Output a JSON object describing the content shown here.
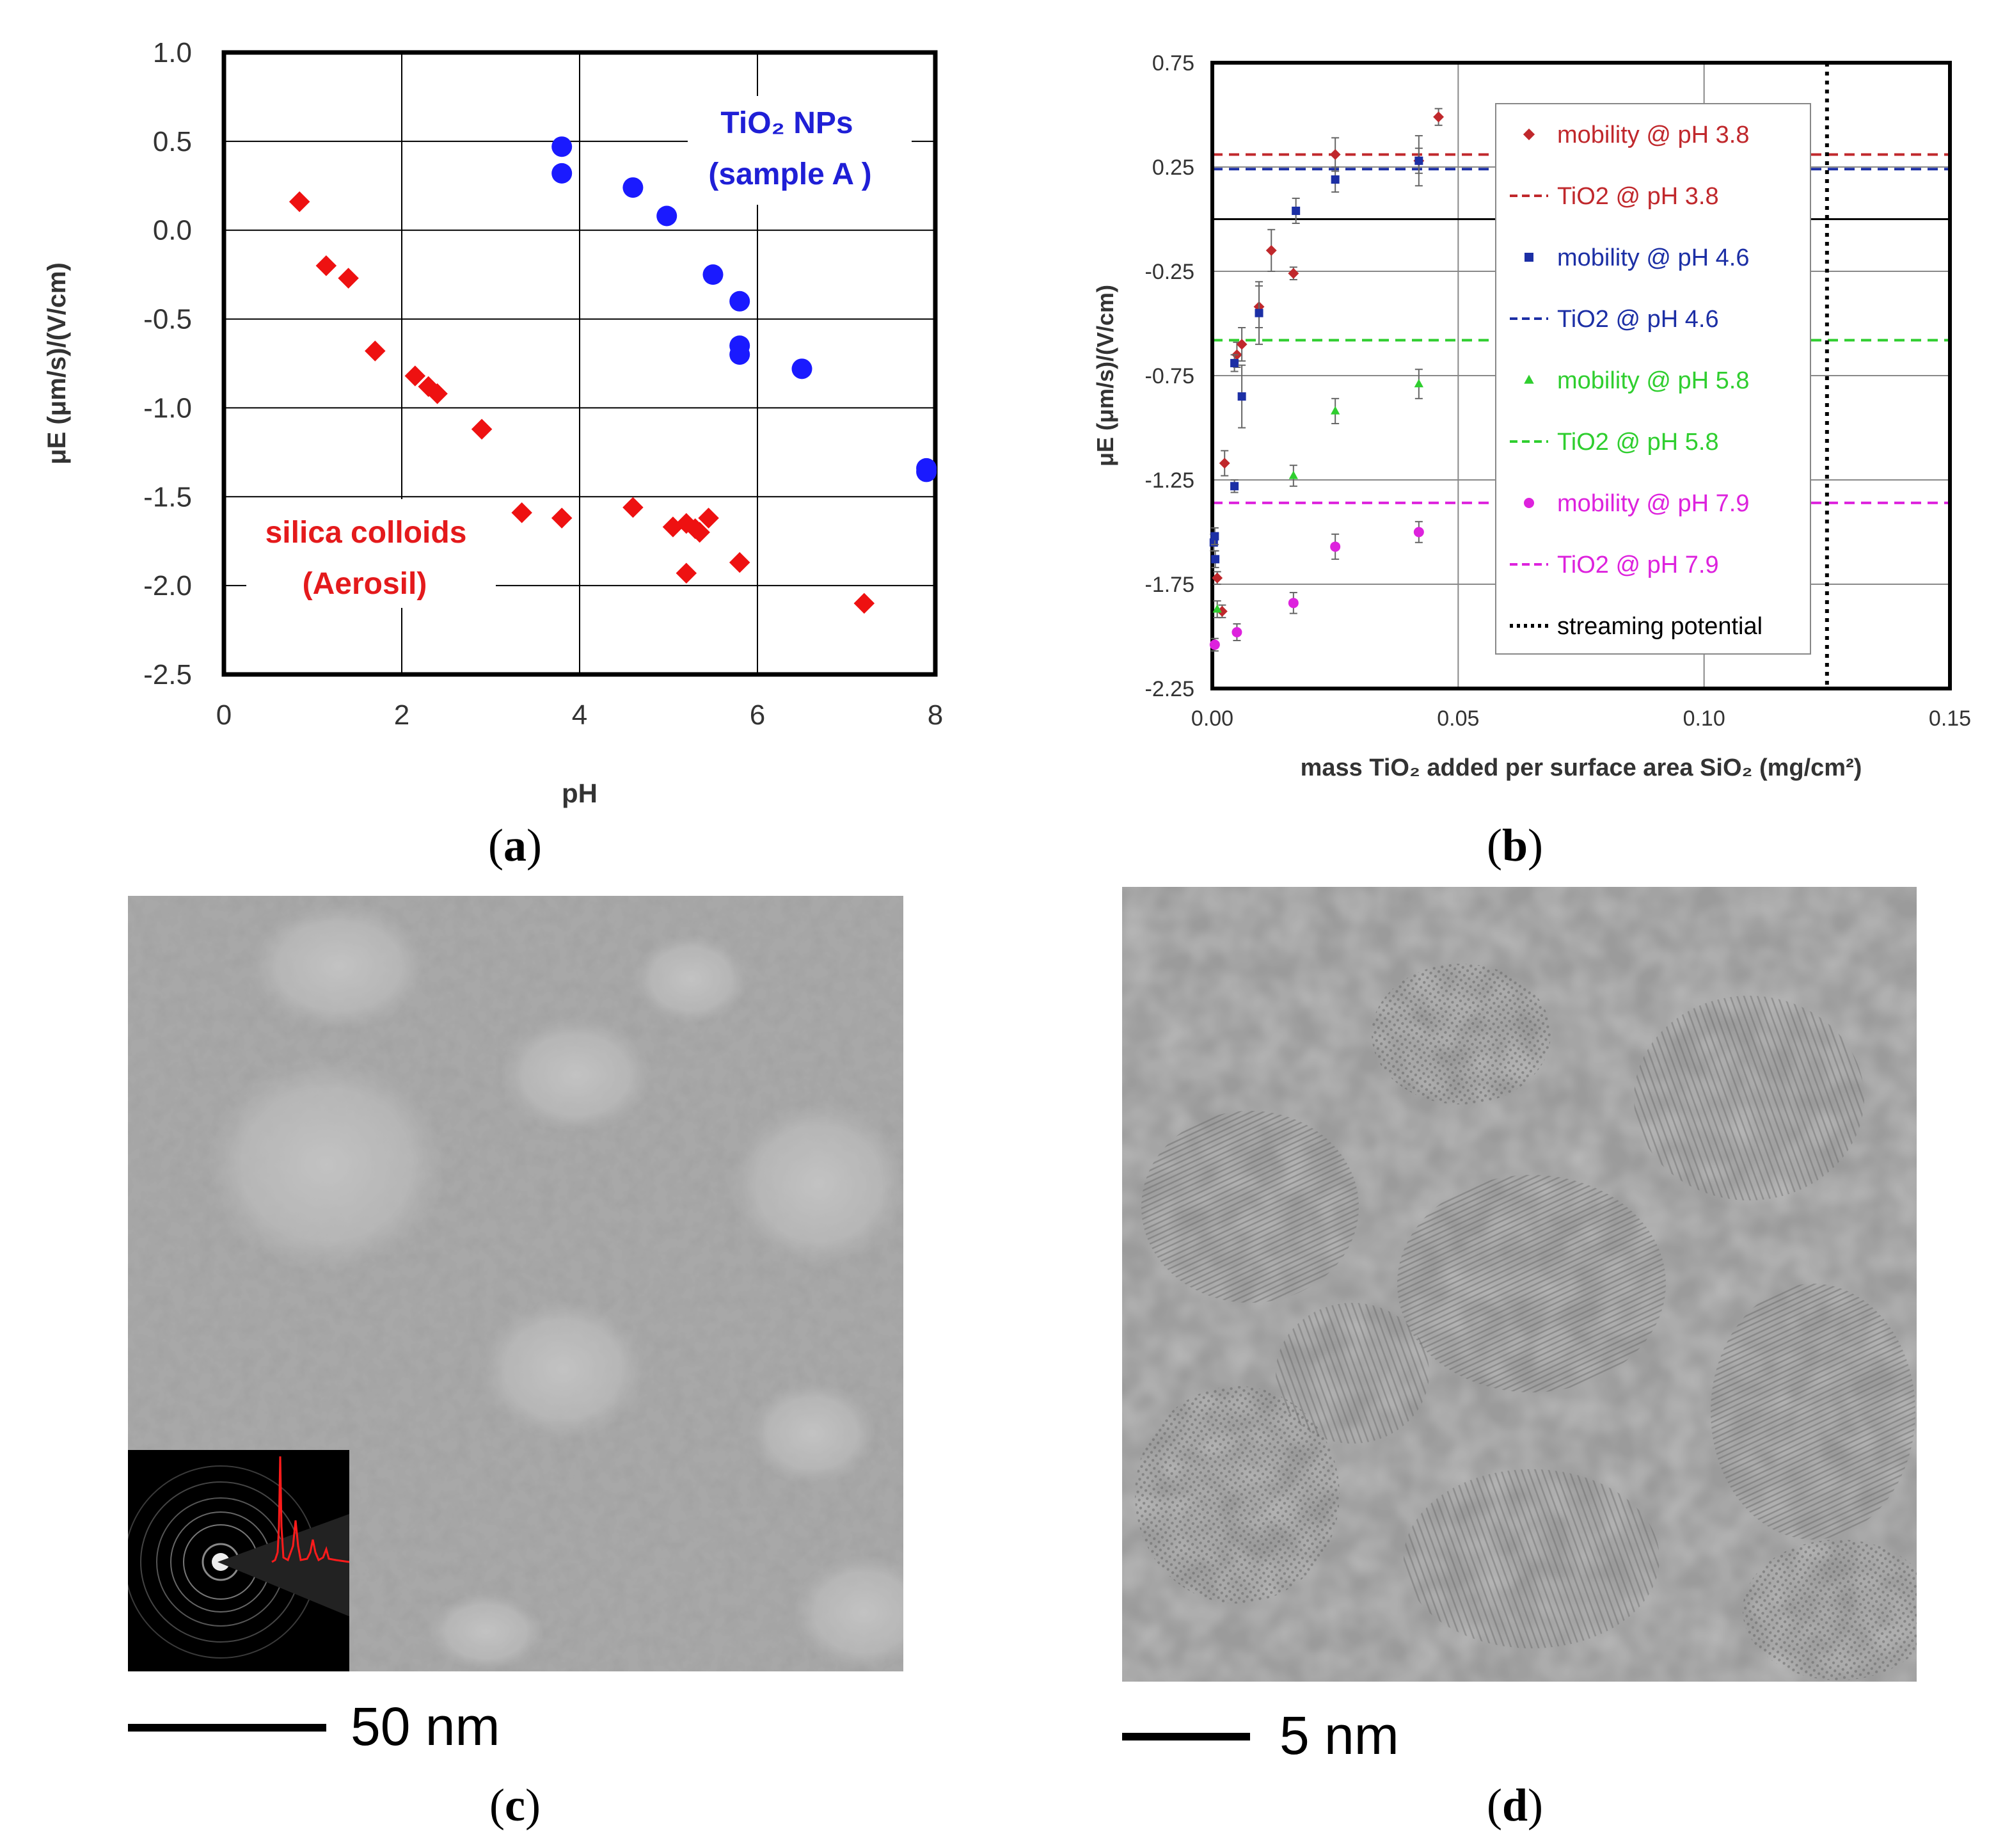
{
  "panels": {
    "a": {
      "caption": "a"
    },
    "b": {
      "caption": "b"
    },
    "c": {
      "caption": "c",
      "scale_bar": "50 nm"
    },
    "d": {
      "caption": "d",
      "scale_bar": "5 nm"
    }
  },
  "chart_data": [
    {
      "type": "scatter",
      "panel": "a",
      "xlabel": "pH",
      "ylabel": "μE (μm/s)/(V/cm)",
      "xlim": [
        0,
        8
      ],
      "ylim": [
        -2.5,
        1.0
      ],
      "xticks": [
        "0",
        "2",
        "4",
        "6",
        "8"
      ],
      "yticks": [
        "1.0",
        "0.5",
        "0.0",
        "-0.5",
        "-1.0",
        "-1.5",
        "-2.0",
        "-2.5"
      ],
      "grid": true,
      "annotations": [
        {
          "text": "TiO₂ NPs",
          "color": "#1f1fd6"
        },
        {
          "text": "(sample A )",
          "color": "#1f1fd6"
        },
        {
          "text": "silica colloids",
          "color": "#e41a1c"
        },
        {
          "text": "(Aerosil)",
          "color": "#e41a1c"
        }
      ],
      "series": [
        {
          "color": "#1a1aff",
          "marker": "circle",
          "points": [
            [
              3.8,
              0.47
            ],
            [
              3.8,
              0.32
            ],
            [
              4.6,
              0.24
            ],
            [
              4.98,
              0.08
            ],
            [
              5.5,
              -0.25
            ],
            [
              5.8,
              -0.4
            ],
            [
              5.8,
              -0.65
            ],
            [
              5.8,
              -0.7
            ],
            [
              6.5,
              -0.78
            ],
            [
              7.9,
              -1.34
            ],
            [
              7.9,
              -1.36
            ]
          ]
        },
        {
          "color": "#ee1111",
          "marker": "diamond",
          "points": [
            [
              0.85,
              0.16
            ],
            [
              1.15,
              -0.2
            ],
            [
              1.4,
              -0.27
            ],
            [
              1.7,
              -0.68
            ],
            [
              2.15,
              -0.82
            ],
            [
              2.3,
              -0.88
            ],
            [
              2.4,
              -0.92
            ],
            [
              2.9,
              -1.12
            ],
            [
              3.35,
              -1.59
            ],
            [
              3.8,
              -1.62
            ],
            [
              4.6,
              -1.56
            ],
            [
              5.05,
              -1.67
            ],
            [
              5.2,
              -1.65
            ],
            [
              5.3,
              -1.68
            ],
            [
              5.35,
              -1.7
            ],
            [
              5.45,
              -1.62
            ],
            [
              5.2,
              -1.93
            ],
            [
              5.8,
              -1.87
            ],
            [
              7.2,
              -2.1
            ]
          ]
        }
      ]
    },
    {
      "type": "scatter",
      "panel": "b",
      "xlabel": "mass TiO₂ added per surface area SiO₂ (mg/cm²)",
      "ylabel": "μE (μm/s)/(V/cm)",
      "xlim": [
        0,
        0.15
      ],
      "ylim": [
        -2.25,
        0.75
      ],
      "xticks": [
        "0.00",
        "0.05",
        "0.10",
        "0.15"
      ],
      "yticks": [
        "0.75",
        "0.25",
        "-0.25",
        "-0.75",
        "-1.25",
        "-1.75",
        "-2.25"
      ],
      "grid": true,
      "legend_position": "right-inside",
      "legend": [
        {
          "label": "mobility @ pH 3.8",
          "color": "#c0282c",
          "kind": "diamond"
        },
        {
          "label": "TiO2 @ pH 3.8",
          "color": "#c0282c",
          "kind": "dashed"
        },
        {
          "label": "mobility @ pH 4.6",
          "color": "#1c2fa5",
          "kind": "square"
        },
        {
          "label": "TiO2 @ pH 4.6",
          "color": "#1c2fa5",
          "kind": "dashed"
        },
        {
          "label": "mobility @ pH 5.8",
          "color": "#2fce2f",
          "kind": "triangle"
        },
        {
          "label": "TiO2 @ pH 5.8",
          "color": "#2fce2f",
          "kind": "dashed"
        },
        {
          "label": "mobility @ pH 7.9",
          "color": "#dd22dd",
          "kind": "circle"
        },
        {
          "label": "TiO2 @ pH 7.9",
          "color": "#dd22dd",
          "kind": "dashed"
        },
        {
          "label": "streaming potential",
          "color": "#000000",
          "kind": "dotted"
        }
      ],
      "hlines": [
        {
          "y": 0.31,
          "color": "#c0282c"
        },
        {
          "y": 0.24,
          "color": "#1c2fa5"
        },
        {
          "y": -0.58,
          "color": "#2fce2f"
        },
        {
          "y": -1.36,
          "color": "#dd22dd"
        },
        {
          "y": 0.0,
          "color": "#000000",
          "solid": true
        }
      ],
      "vline_x": 0.125,
      "series": [
        {
          "color": "#c0282c",
          "marker": "diamond",
          "points": [
            [
              0.001,
              -1.72
            ],
            [
              0.002,
              -1.88
            ],
            [
              0.0025,
              -1.17
            ],
            [
              0.005,
              -0.65
            ],
            [
              0.006,
              -0.6
            ],
            [
              0.0095,
              -0.42
            ],
            [
              0.012,
              -0.15
            ],
            [
              0.0165,
              -0.26
            ],
            [
              0.025,
              0.31
            ],
            [
              0.042,
              0.28
            ],
            [
              0.046,
              0.49
            ]
          ],
          "err": [
            0.03,
            0.03,
            0.06,
            0.06,
            0.08,
            0.1,
            0.1,
            0.03,
            0.08,
            0.12,
            0.04
          ]
        },
        {
          "color": "#1c2fa5",
          "marker": "square",
          "points": [
            [
              0.0003,
              -1.55
            ],
            [
              0.0005,
              -1.52
            ],
            [
              0.0006,
              -1.63
            ],
            [
              0.0045,
              -0.69
            ],
            [
              0.0045,
              -1.28
            ],
            [
              0.006,
              -0.85
            ],
            [
              0.0095,
              -0.45
            ],
            [
              0.017,
              0.04
            ],
            [
              0.025,
              0.19
            ],
            [
              0.042,
              0.28
            ]
          ],
          "err": [
            0.04,
            0.04,
            0.04,
            0.04,
            0.03,
            0.15,
            0.15,
            0.06,
            0.06,
            0.06
          ]
        },
        {
          "color": "#2fce2f",
          "marker": "triangle",
          "points": [
            [
              0.001,
              -1.87
            ],
            [
              0.0165,
              -1.23
            ],
            [
              0.025,
              -0.92
            ],
            [
              0.042,
              -0.79
            ]
          ],
          "err": [
            0.04,
            0.05,
            0.06,
            0.07
          ]
        },
        {
          "color": "#dd22dd",
          "marker": "circle",
          "points": [
            [
              0.0005,
              -2.04
            ],
            [
              0.005,
              -1.98
            ],
            [
              0.0165,
              -1.84
            ],
            [
              0.025,
              -1.57
            ],
            [
              0.042,
              -1.5
            ]
          ],
          "err": [
            0.03,
            0.04,
            0.05,
            0.06,
            0.05
          ]
        }
      ]
    }
  ]
}
